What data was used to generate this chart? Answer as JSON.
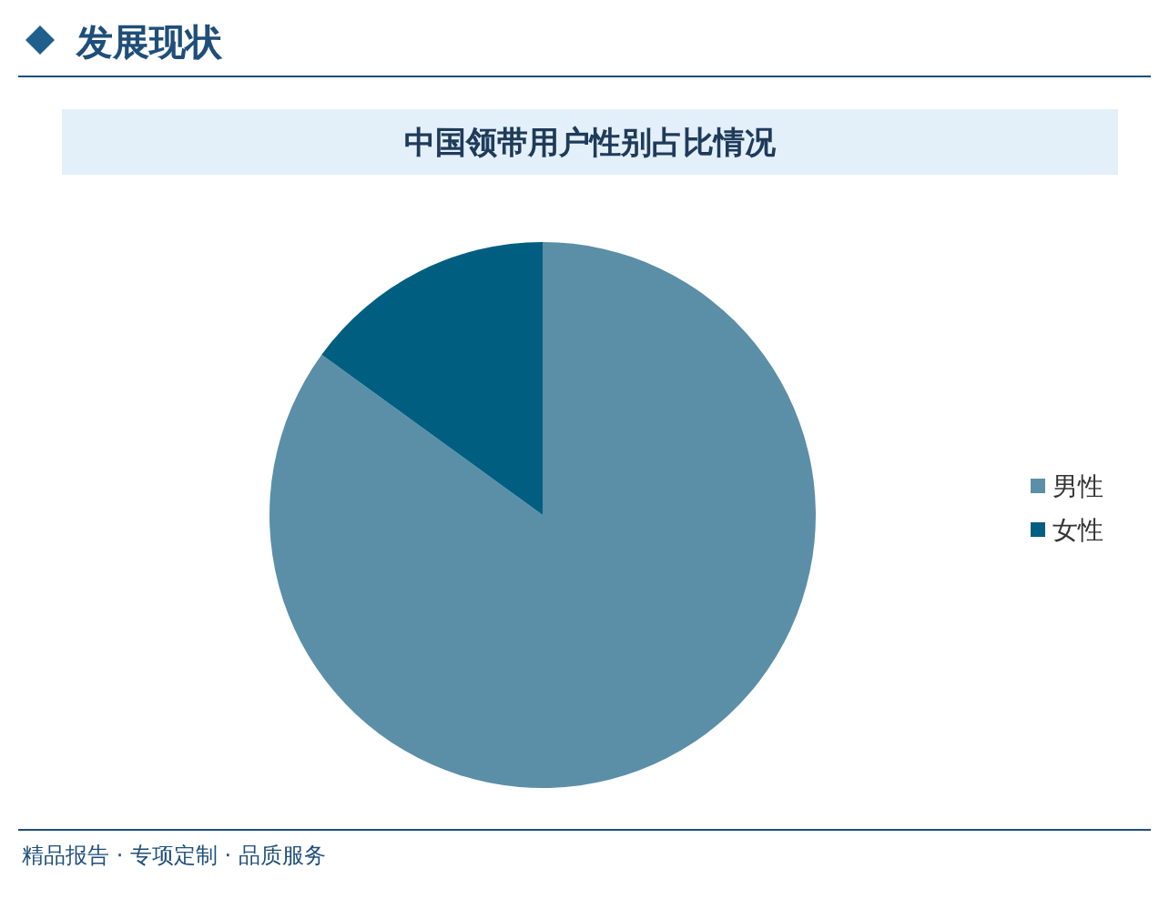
{
  "chart_data": {
    "type": "pie",
    "title": "发展现状",
    "subtitle": "中国领带用户性别占比情况",
    "categories": [
      "男性",
      "女性"
    ],
    "values": [
      85,
      15
    ],
    "colors": [
      "#5b8fa8",
      "#005f80"
    ],
    "legend": "right",
    "annotations": [
      "精品报告 · 专项定制 · 品质服务"
    ]
  }
}
